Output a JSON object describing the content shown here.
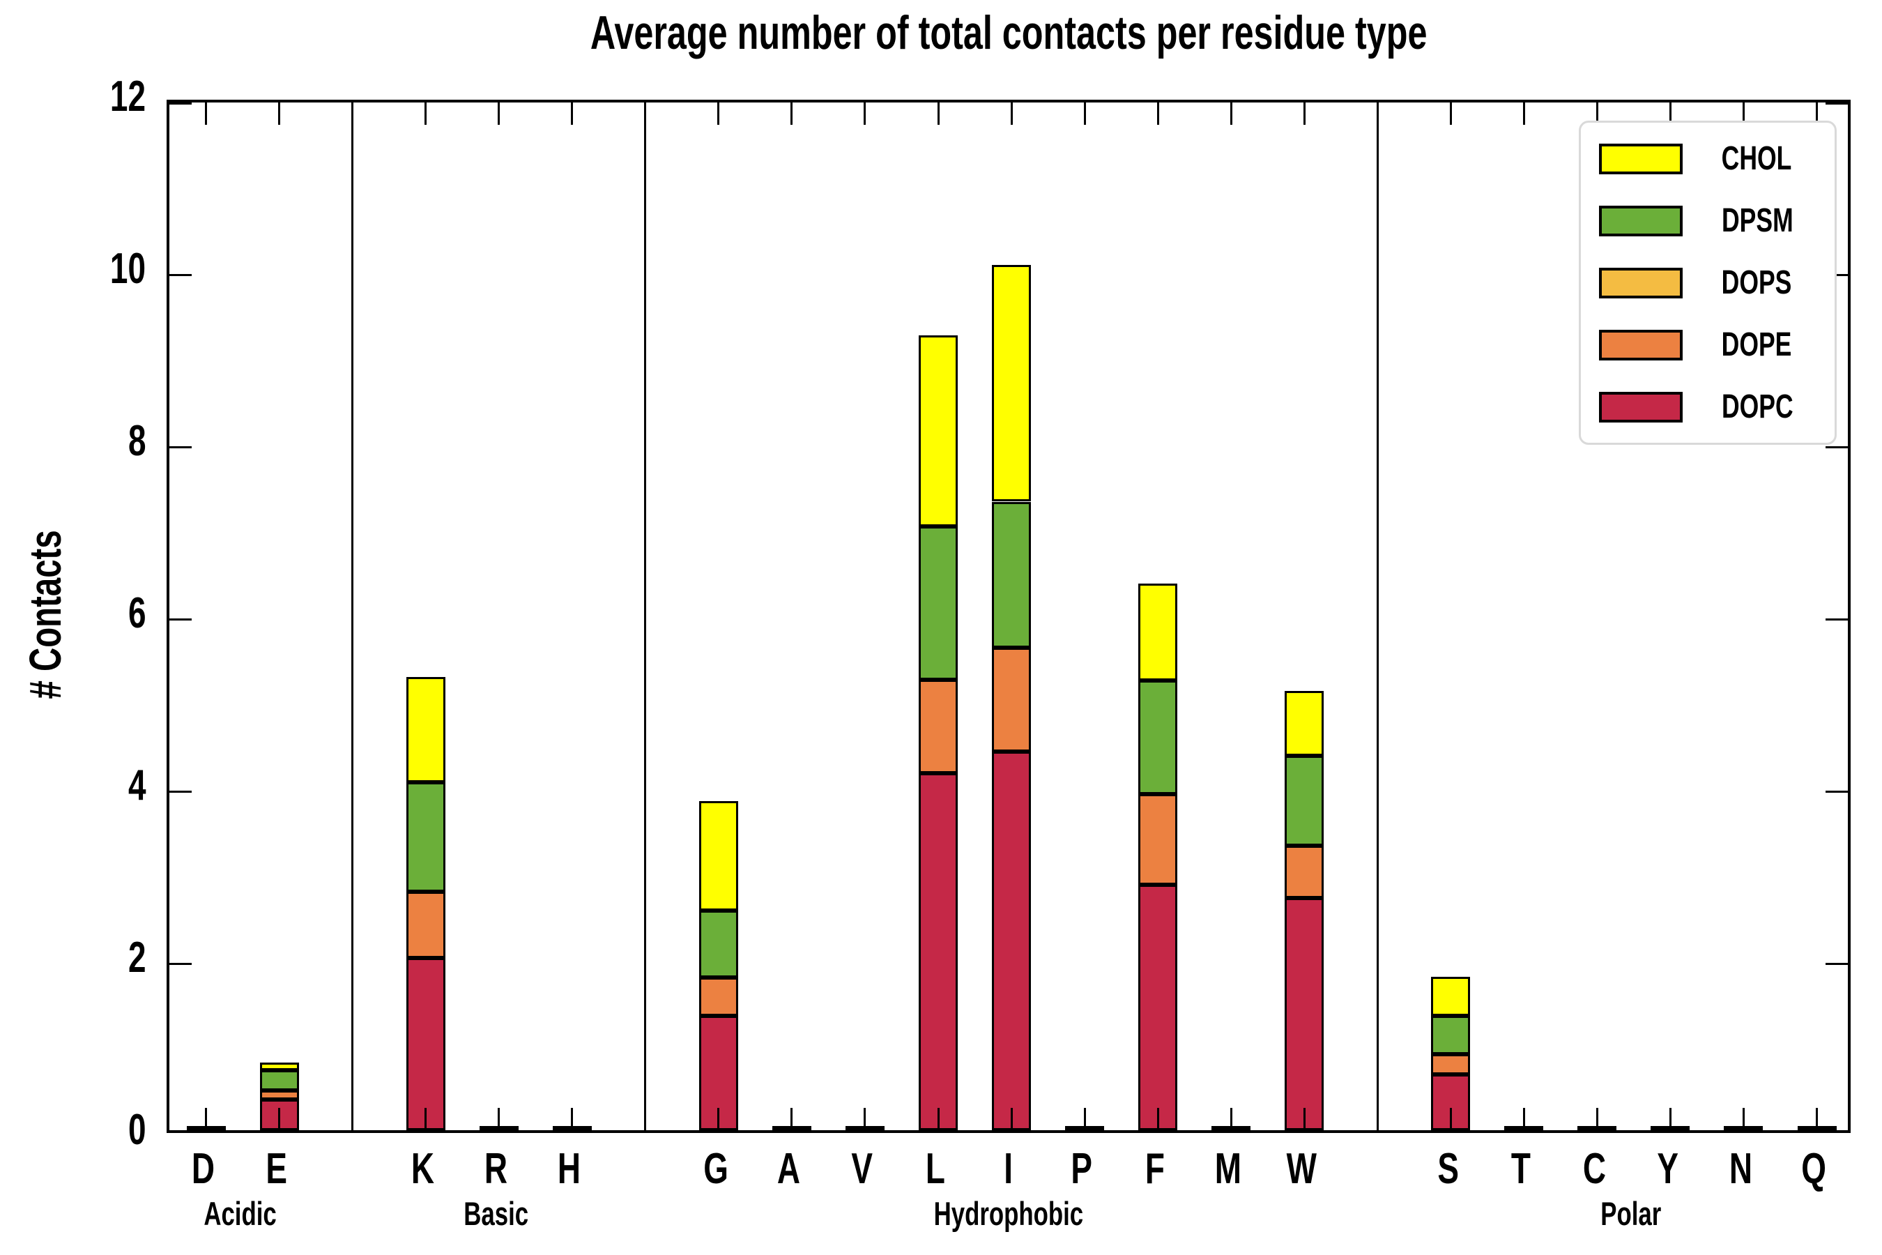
{
  "title": "Average number of total contacts per residue type",
  "y_axis": {
    "label": "# Contacts",
    "ticks": [
      0,
      2,
      4,
      6,
      8,
      10,
      12
    ],
    "min": 0,
    "max": 12
  },
  "legend": {
    "position": "upper right",
    "items": [
      {
        "label": "CHOL",
        "color": "#FFFF00"
      },
      {
        "label": "DPSM",
        "color": "#6BAF39"
      },
      {
        "label": "DOPS",
        "color": "#F4BC42"
      },
      {
        "label": "DOPE",
        "color": "#EC8141"
      },
      {
        "label": "DOPC",
        "color": "#C52847"
      }
    ]
  },
  "chart_data": {
    "type": "bar",
    "stacked": true,
    "title": "Average number of total contacts per residue type",
    "xlabel": "",
    "ylabel": "# Contacts",
    "ylim": [
      0,
      12
    ],
    "yticks": [
      0,
      2,
      4,
      6,
      8,
      10,
      12
    ],
    "grid": false,
    "legend_order_top_to_bottom": [
      "CHOL",
      "DPSM",
      "DOPS",
      "DOPE",
      "DOPC"
    ],
    "categories": [
      "D",
      "E",
      "K",
      "R",
      "H",
      "G",
      "A",
      "V",
      "L",
      "I",
      "P",
      "F",
      "M",
      "W",
      "S",
      "T",
      "C",
      "Y",
      "N",
      "Q"
    ],
    "groups": [
      {
        "label": "Acidic",
        "residues": [
          "D",
          "E"
        ]
      },
      {
        "label": "Basic",
        "residues": [
          "K",
          "R",
          "H"
        ]
      },
      {
        "label": "Hydrophobic",
        "residues": [
          "G",
          "A",
          "V",
          "L",
          "I",
          "P",
          "F",
          "M",
          "W"
        ]
      },
      {
        "label": "Polar",
        "residues": [
          "S",
          "T",
          "C",
          "Y",
          "N",
          "Q"
        ]
      }
    ],
    "series": [
      {
        "name": "DOPC",
        "color": "#C52847",
        "values": [
          0.03,
          0.36,
          2.0,
          0.03,
          0.03,
          1.33,
          0.03,
          0.03,
          4.15,
          4.4,
          0.03,
          2.85,
          0.03,
          2.7,
          0.65,
          0.03,
          0.03,
          0.03,
          0.03,
          0.03
        ]
      },
      {
        "name": "DOPE",
        "color": "#EC8141",
        "values": [
          0,
          0.1,
          0.77,
          0,
          0,
          0.44,
          0,
          0,
          1.08,
          1.2,
          0,
          1.05,
          0,
          0.6,
          0.23,
          0,
          0,
          0,
          0,
          0
        ]
      },
      {
        "name": "DOPS",
        "color": "#F4BC42",
        "values": [
          0,
          0,
          0,
          0,
          0,
          0,
          0,
          0,
          0,
          0,
          0,
          0,
          0,
          0,
          0,
          0,
          0,
          0,
          0,
          0
        ]
      },
      {
        "name": "DPSM",
        "color": "#6BAF39",
        "values": [
          0,
          0.24,
          1.27,
          0,
          0,
          0.78,
          0,
          0,
          1.78,
          1.7,
          0,
          1.32,
          0,
          1.05,
          0.45,
          0,
          0,
          0,
          0,
          0
        ]
      },
      {
        "name": "CHOL",
        "color": "#FFFF00",
        "values": [
          0,
          0.09,
          1.22,
          0,
          0,
          1.27,
          0,
          0,
          2.22,
          2.75,
          0,
          1.13,
          0,
          0.75,
          0.45,
          0,
          0,
          0,
          0,
          0
        ]
      }
    ],
    "totals_note": {
      "E": 0.79,
      "K": 5.26,
      "G": 3.82,
      "L": 9.23,
      "I": 10.05,
      "F": 6.35,
      "W": 5.1,
      "S": 1.78
    }
  }
}
